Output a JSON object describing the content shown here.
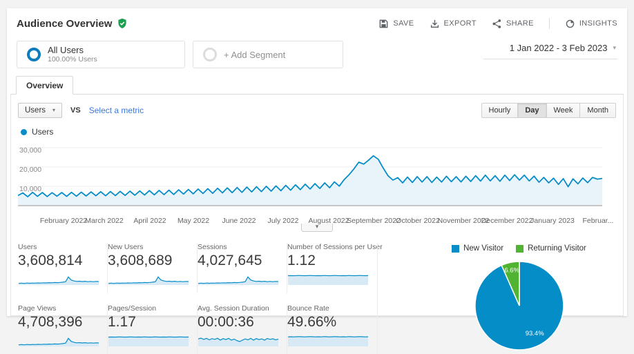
{
  "header": {
    "title": "Audience Overview",
    "verified_icon": "shield-check-icon",
    "actions": [
      {
        "label": "SAVE",
        "icon": "save-icon"
      },
      {
        "label": "EXPORT",
        "icon": "export-icon"
      },
      {
        "label": "SHARE",
        "icon": "share-icon"
      },
      {
        "label": "INSIGHTS",
        "icon": "insights-icon"
      }
    ]
  },
  "segments": {
    "all_users": {
      "label": "All Users",
      "sublabel": "100.00% Users"
    },
    "add_segment": {
      "label": "+ Add Segment"
    }
  },
  "date_range": {
    "label": "1 Jan 2022 - 3 Feb 2023"
  },
  "tabs": [
    {
      "label": "Overview",
      "active": true
    }
  ],
  "controls": {
    "metric_dropdown": "Users",
    "vs_label": "VS",
    "compare_link": "Select a metric",
    "granularity": [
      "Hourly",
      "Day",
      "Week",
      "Month"
    ],
    "granularity_active": "Day"
  },
  "legend": {
    "label": "Users",
    "color": "#058dc7"
  },
  "icons": {
    "caret_down": "▾",
    "legend_dot": "●"
  },
  "colors": {
    "chart_blue": "#058dc7",
    "chart_fill": "#e9f3fa",
    "spark_fill": "#d7e9f5",
    "pie_blue": "#058dc7",
    "pie_green": "#50b432"
  },
  "metrics": [
    {
      "label": "Users",
      "value": "3,608,814",
      "spark": "spike"
    },
    {
      "label": "New Users",
      "value": "3,608,689",
      "spark": "spike"
    },
    {
      "label": "Sessions",
      "value": "4,027,645",
      "spark": "spike"
    },
    {
      "label": "Number of Sessions per User",
      "value": "1.12",
      "spark": "flat_high"
    },
    {
      "label": "Page Views",
      "value": "4,708,396",
      "spark": "spike"
    },
    {
      "label": "Pages/Session",
      "value": "1.17",
      "spark": "flat_high"
    },
    {
      "label": "Avg. Session Duration",
      "value": "00:00:36",
      "spark": "noisy"
    },
    {
      "label": "Bounce Rate",
      "value": "49.66%",
      "spark": "flat_high2"
    }
  ],
  "sparklines": {
    "spike": [
      10,
      12,
      10,
      13,
      11,
      13,
      12,
      14,
      13,
      15,
      14,
      16,
      15,
      17,
      16,
      18,
      20,
      24,
      62,
      38,
      30,
      26,
      28,
      25,
      27,
      24,
      26,
      24,
      26,
      25
    ],
    "flat_high": [
      72,
      73,
      72,
      73,
      74,
      73,
      72,
      73,
      74,
      73,
      72,
      73,
      72,
      74,
      73,
      72,
      73,
      74,
      73,
      72,
      73,
      72,
      74,
      73,
      72,
      73,
      74,
      73,
      72,
      73
    ],
    "noisy": [
      58,
      64,
      54,
      62,
      50,
      60,
      54,
      63,
      48,
      60,
      52,
      62,
      48,
      56,
      44,
      36,
      48,
      58,
      50,
      62,
      48,
      60,
      52,
      58,
      48,
      61,
      54,
      59,
      50,
      56
    ],
    "flat_high2": [
      74,
      75,
      74,
      75,
      76,
      75,
      74,
      75,
      76,
      75,
      74,
      75,
      74,
      76,
      75,
      74,
      75,
      76,
      75,
      74,
      75,
      74,
      76,
      75,
      74,
      75,
      76,
      75,
      74,
      75
    ]
  },
  "chart_data": [
    {
      "type": "line",
      "name": "users-over-time",
      "series_label": "Users",
      "x_range": [
        "1 Jan 2022",
        "3 Feb 2023"
      ],
      "total_days": 399,
      "ylim": [
        0,
        30000
      ],
      "yticks": [
        10000,
        20000,
        30000
      ],
      "ytick_labels": [
        "10,000",
        "20,000",
        "30,000"
      ],
      "grid": true,
      "xticks": [
        {
          "label": "February 2022",
          "day": 31
        },
        {
          "label": "March 2022",
          "day": 59
        },
        {
          "label": "April 2022",
          "day": 90
        },
        {
          "label": "May 2022",
          "day": 120
        },
        {
          "label": "June 2022",
          "day": 151
        },
        {
          "label": "July 2022",
          "day": 181
        },
        {
          "label": "August 2022",
          "day": 212
        },
        {
          "label": "September 2022",
          "day": 243
        },
        {
          "label": "October 2022",
          "day": 273
        },
        {
          "label": "November 2022",
          "day": 304
        },
        {
          "label": "December 2022",
          "day": 334
        },
        {
          "label": "January 2023",
          "day": 365
        },
        {
          "label": "Februar...",
          "day": 396
        }
      ],
      "values": [
        5200,
        6600,
        4600,
        6900,
        4800,
        6800,
        4700,
        6700,
        4900,
        6800,
        4800,
        6900,
        4900,
        7000,
        5000,
        7100,
        5100,
        7200,
        5100,
        7300,
        5200,
        7400,
        5300,
        7500,
        5400,
        7600,
        5500,
        7800,
        5600,
        7900,
        5700,
        8000,
        5800,
        8200,
        6000,
        8400,
        6100,
        8600,
        6300,
        8800,
        6400,
        9000,
        6600,
        9200,
        6700,
        9400,
        6900,
        9600,
        7100,
        9800,
        7300,
        10000,
        7500,
        10200,
        7700,
        10500,
        8000,
        10800,
        8300,
        11100,
        8600,
        11400,
        8900,
        11800,
        9300,
        12300,
        10100,
        13500,
        16000,
        19000,
        22500,
        21500,
        23500,
        25800,
        24000,
        19500,
        15500,
        13200,
        14500,
        11800,
        14800,
        12000,
        15000,
        12200,
        15000,
        12000,
        14800,
        12200,
        15200,
        12400,
        15000,
        12300,
        15200,
        12500,
        15500,
        12700,
        15800,
        12800,
        15500,
        12600,
        15800,
        13000,
        16000,
        13200,
        15800,
        12800,
        15300,
        12100,
        14600,
        11800,
        14200,
        11000,
        14000,
        9800,
        13900,
        11300,
        14300,
        11900,
        14600,
        13700,
        14100
      ]
    },
    {
      "type": "pie",
      "name": "visitor-type",
      "legend_position": "top",
      "slices": [
        {
          "label": "New Visitor",
          "pct": 93.4,
          "display": "93.4%",
          "color": "#058dc7"
        },
        {
          "label": "Returning Visitor",
          "pct": 6.6,
          "display": "6.6%",
          "color": "#50b432"
        }
      ]
    }
  ]
}
